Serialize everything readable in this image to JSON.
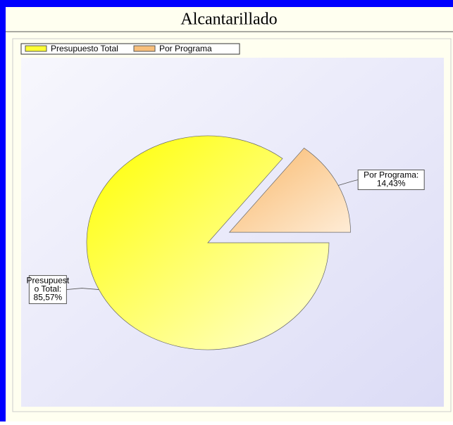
{
  "chart_data": {
    "type": "pie",
    "title": "Alcantarillado",
    "categories": [
      "Presupuesto Total",
      "Por Programa"
    ],
    "values": [
      85.57,
      14.43
    ],
    "value_labels": [
      [
        "Presupuest",
        "o Total:",
        "85,57%"
      ],
      [
        "Por Programa:",
        "14,43%"
      ]
    ],
    "colors": [
      "#ffff33",
      "#f9bf7a"
    ],
    "legend": "top-left"
  }
}
